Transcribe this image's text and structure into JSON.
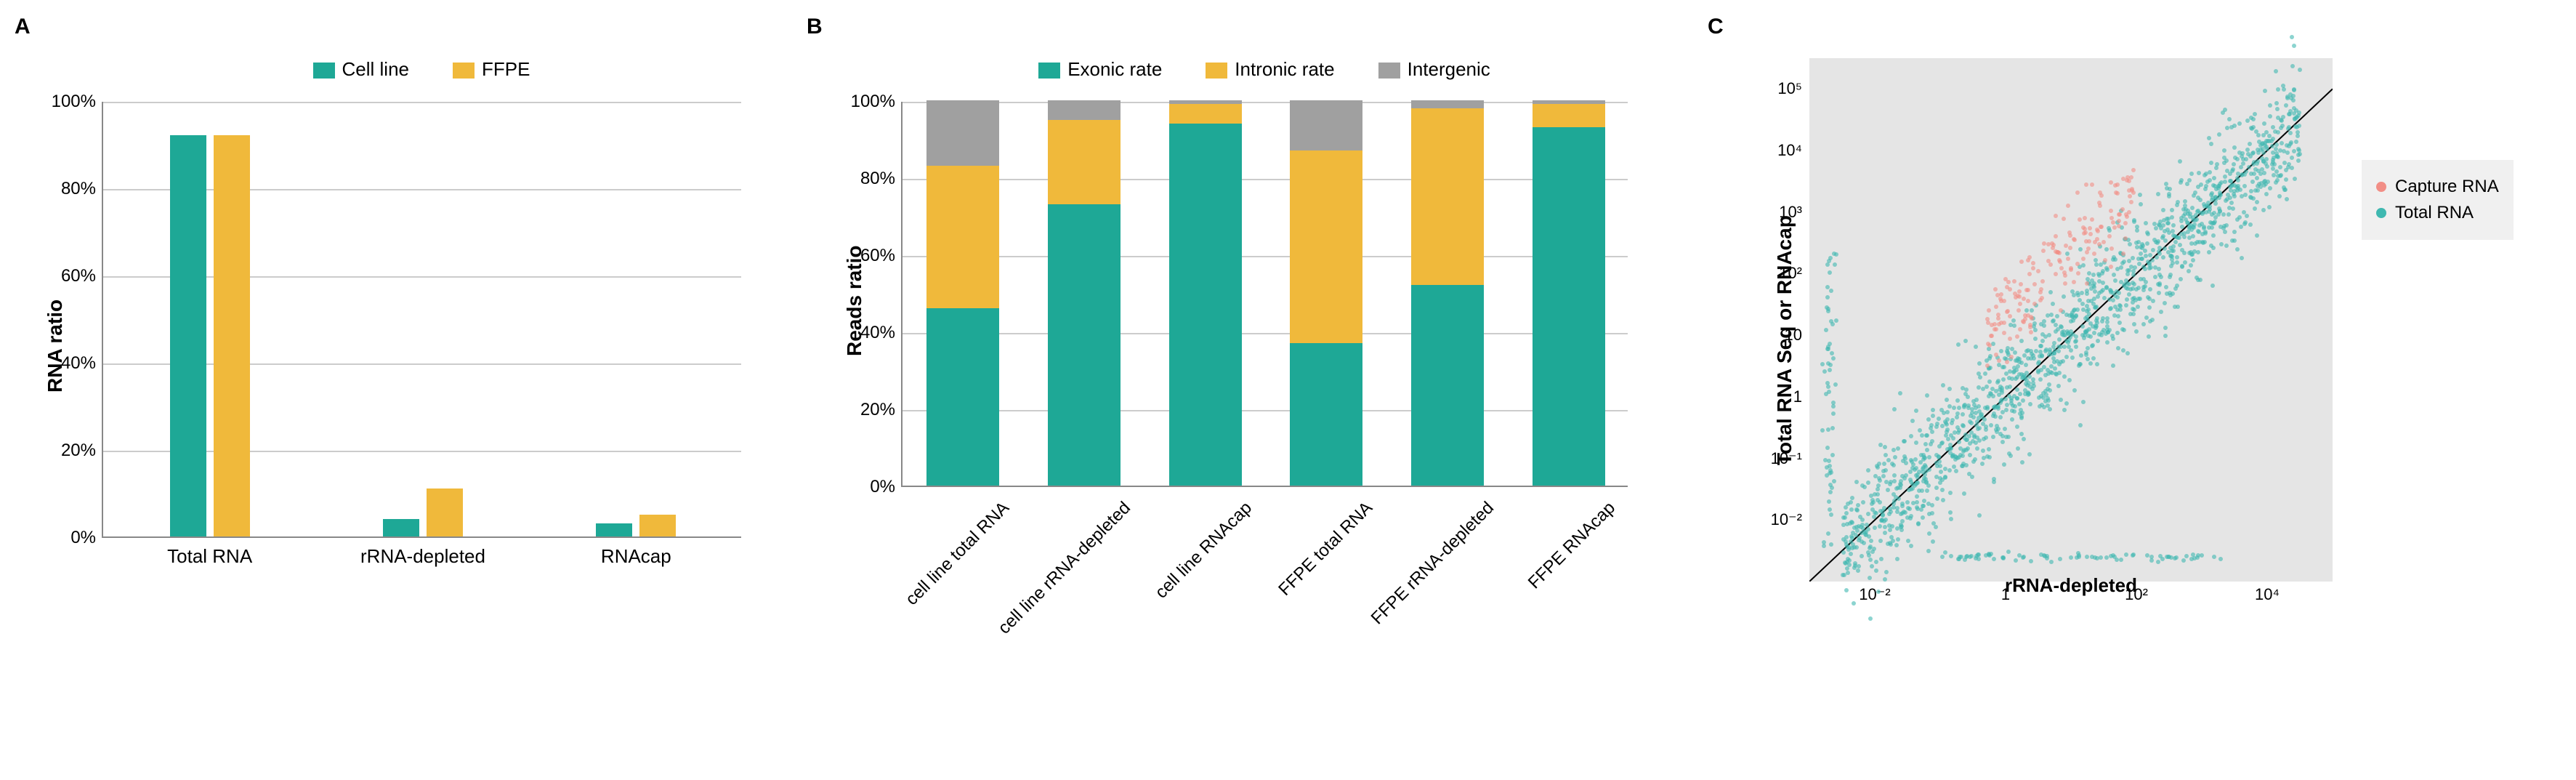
{
  "panelA": {
    "label": "A",
    "type": "bar",
    "legend": [
      "Cell line",
      "FFPE"
    ],
    "colors": {
      "cell_line": "#1ea896",
      "ffpe": "#f0b93b"
    },
    "categories": [
      "Total RNA",
      "rRNA-depleted",
      "RNAcap"
    ],
    "values": {
      "cell_line": [
        92,
        4,
        3
      ],
      "ffpe": [
        92,
        11,
        5
      ]
    },
    "ylabel": "RNA ratio",
    "ylim": [
      0,
      100
    ],
    "ytick_step": 20,
    "ytick_suffix": "%",
    "grid_color": "#cccccc",
    "axis_color": "#888888",
    "label_fontsize": 26,
    "axis_fontweight": "bold"
  },
  "panelB": {
    "label": "B",
    "type": "stacked_bar",
    "legend": [
      "Exonic rate",
      "Intronic rate",
      "Intergenic"
    ],
    "colors": {
      "exonic": "#1ea896",
      "intronic": "#f0b93b",
      "intergenic": "#a0a0a0"
    },
    "categories": [
      "cell line total RNA",
      "cell line rRNA-depleted",
      "cell line RNAcap",
      "FFPE total RNA",
      "FFPE rRNA-depleted",
      "FFPE RNAcap"
    ],
    "stacks": [
      {
        "exonic": 46,
        "intronic": 37,
        "intergenic": 17
      },
      {
        "exonic": 73,
        "intronic": 22,
        "intergenic": 5
      },
      {
        "exonic": 94,
        "intronic": 5,
        "intergenic": 1
      },
      {
        "exonic": 37,
        "intronic": 50,
        "intergenic": 13
      },
      {
        "exonic": 52,
        "intronic": 46,
        "intergenic": 2
      },
      {
        "exonic": 93,
        "intronic": 6,
        "intergenic": 1
      }
    ],
    "ylabel": "Reads ratio",
    "ylim": [
      0,
      100
    ],
    "ytick_step": 20,
    "ytick_suffix": "%",
    "grid_color": "#cccccc",
    "xlabel_rotation": -45
  },
  "panelC": {
    "label": "C",
    "type": "scatter",
    "xlabel": "rRNA-depleted",
    "ylabel": "Total RNA Seq or RNAcap",
    "xscale": "log",
    "yscale": "log",
    "x_ticks": [
      "10⁻²",
      "1",
      "10²",
      "10⁴"
    ],
    "x_tick_exp": [
      -2,
      0,
      2,
      4
    ],
    "y_ticks": [
      "10⁻²",
      "10⁻¹",
      "1",
      "10",
      "10²",
      "10³",
      "10⁴",
      "10⁵"
    ],
    "y_tick_exp": [
      -2,
      -1,
      0,
      1,
      2,
      3,
      4,
      5
    ],
    "xlim_exp": [
      -3,
      5
    ],
    "ylim_exp": [
      -3,
      5.5
    ],
    "legend": [
      "Capture RNA",
      "Total RNA"
    ],
    "colors": {
      "capture": "#f28e86",
      "total": "#3fb8b0"
    },
    "background": "#e5e5e5",
    "diagonal_line_color": "#000000",
    "marker_size": 6,
    "marker_opacity": 0.6,
    "n_points_total": 1500,
    "n_points_capture": 180,
    "total_cloud": {
      "center_line_slope": 1,
      "spread": 0.5
    },
    "capture_cloud": {
      "x_range_exp": [
        -0.3,
        2.0
      ],
      "y_offset_exp": 1.3,
      "spread": 0.35
    },
    "vertical_stripe": {
      "x_exp": -2.7,
      "y_range_exp": [
        -2.5,
        2.5
      ],
      "n": 60
    },
    "horizontal_stripe": {
      "y_exp": -2.6,
      "x_range_exp": [
        -1,
        3.3
      ],
      "n": 80
    }
  }
}
